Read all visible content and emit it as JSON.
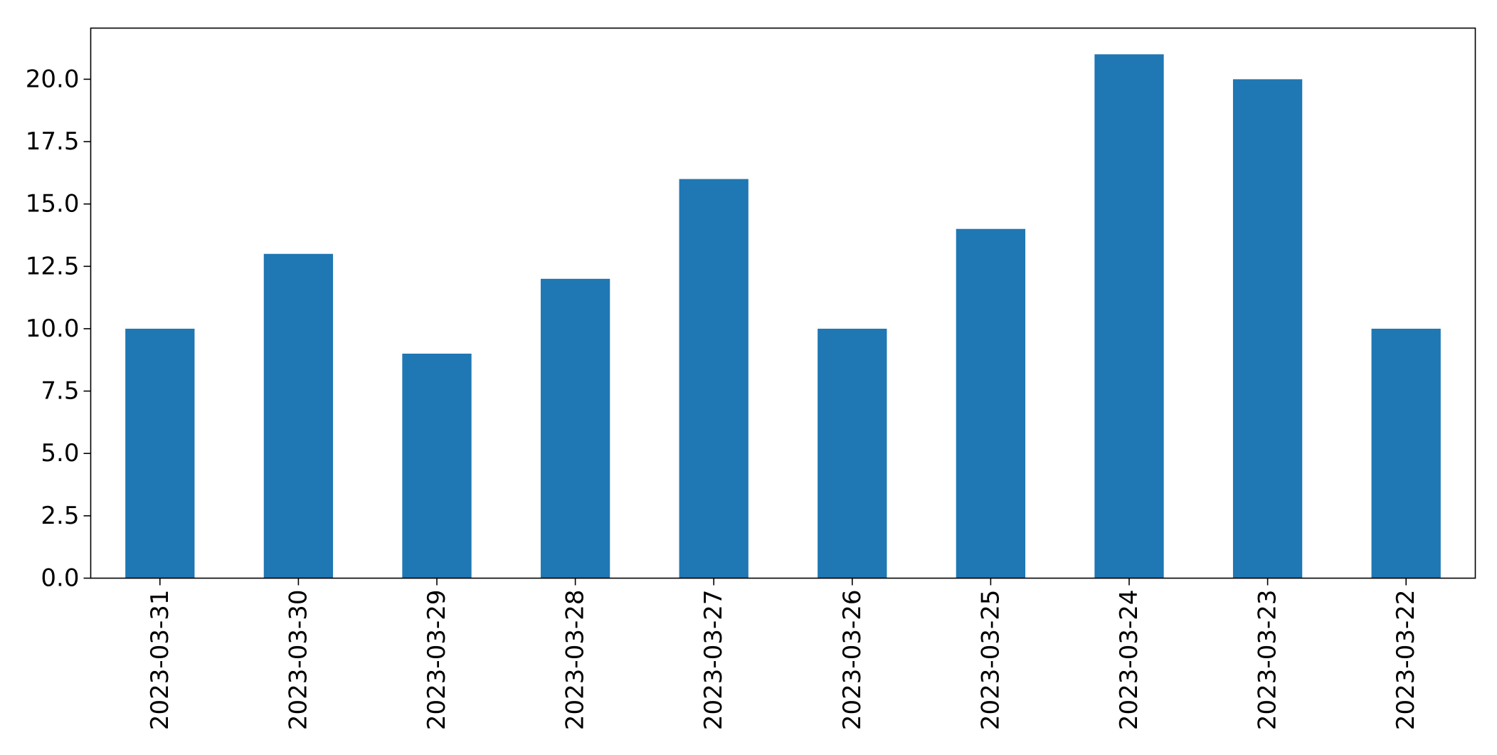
{
  "chart_data": {
    "type": "bar",
    "title": "",
    "xlabel": "",
    "ylabel": "",
    "categories": [
      "2023-03-31",
      "2023-03-30",
      "2023-03-29",
      "2023-03-28",
      "2023-03-27",
      "2023-03-26",
      "2023-03-25",
      "2023-03-24",
      "2023-03-23",
      "2023-03-22"
    ],
    "values": [
      10,
      13,
      9,
      12,
      16,
      10,
      14,
      21,
      20,
      10
    ],
    "ylim": [
      0,
      22.05
    ],
    "yticks": [
      0,
      2.5,
      5,
      7.5,
      10,
      12.5,
      15,
      17.5,
      20
    ],
    "ytick_labels": [
      "0.0",
      "2.5",
      "5.0",
      "7.5",
      "10.0",
      "12.5",
      "15.0",
      "17.5",
      "20.0"
    ],
    "grid": false,
    "legend": "none",
    "bar_color": "#1f77b4"
  }
}
